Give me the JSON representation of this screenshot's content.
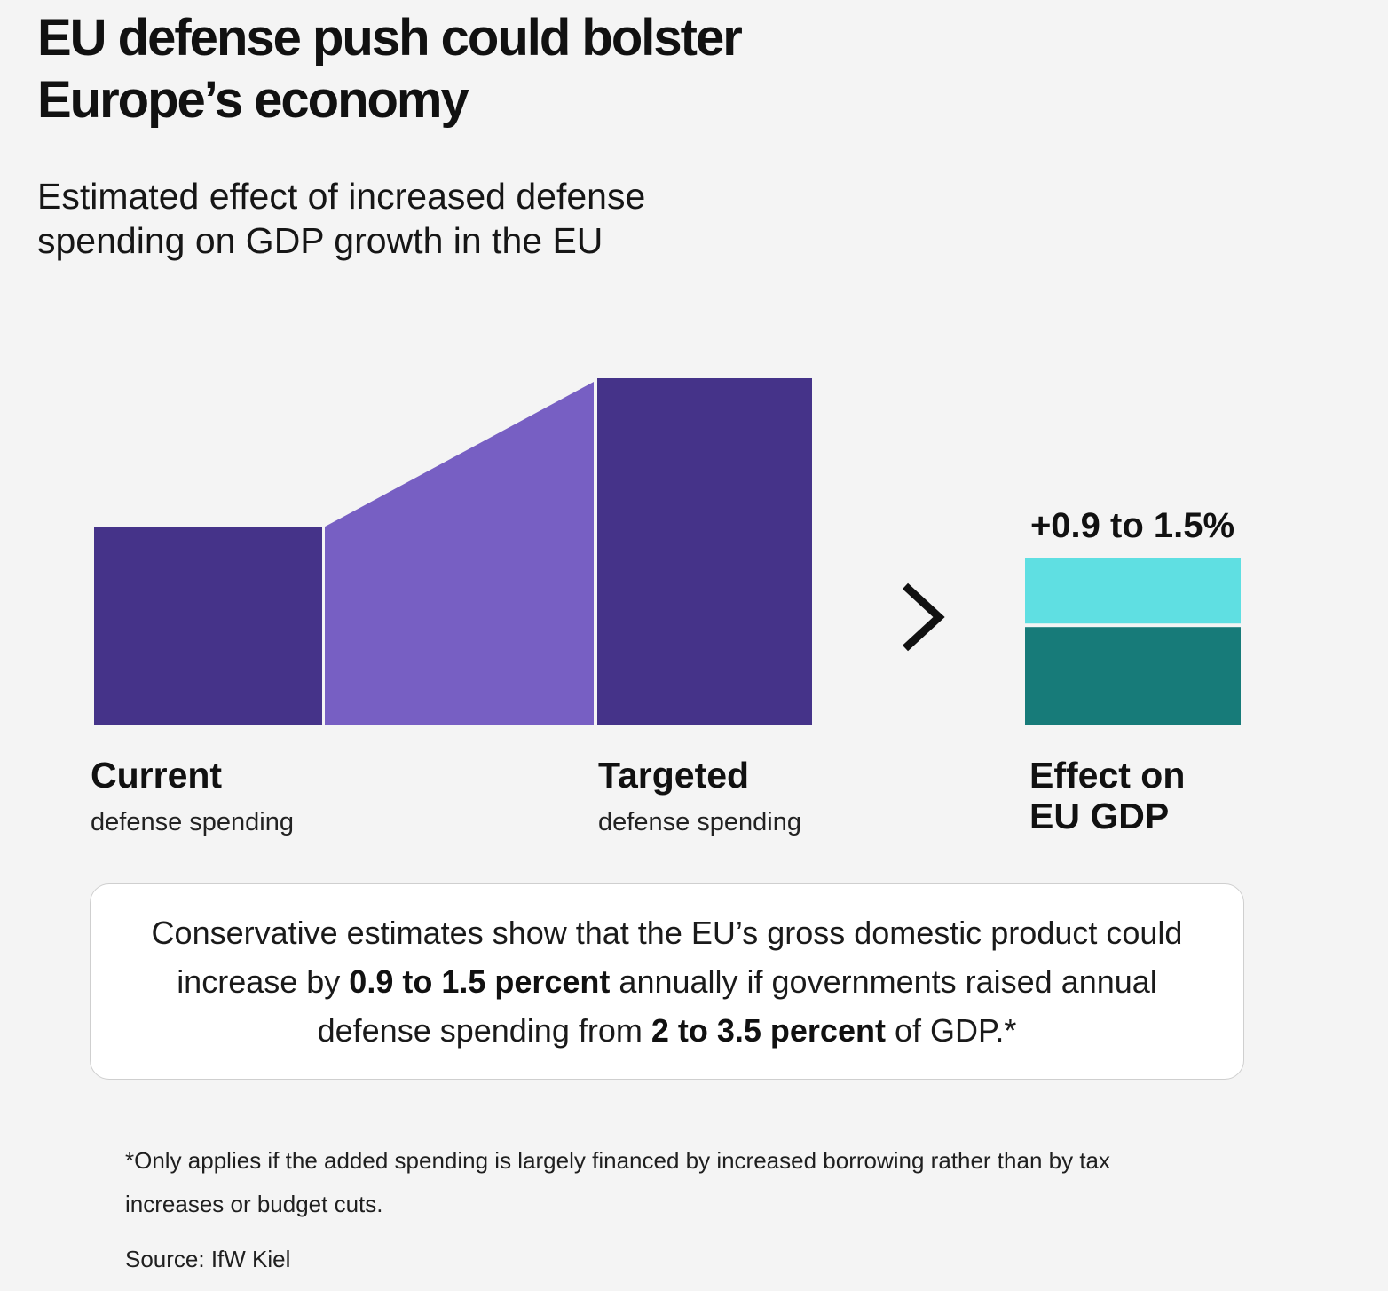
{
  "header": {
    "title_line1": "EU defense push could bolster",
    "title_line2": "Europe’s economy",
    "subtitle_line1": "Estimated effect of increased defense",
    "subtitle_line2": "spending on GDP growth in the EU"
  },
  "labels": {
    "current_head": "Current",
    "current_sub": "defense spending",
    "targeted_head": "Targeted",
    "targeted_sub": "defense spending",
    "gdp_line1": "Effect on",
    "gdp_line2": "EU GDP"
  },
  "note": {
    "part1": "Conservative estimates show that the EU’s gross domestic product could increase by ",
    "bold1": "0.9 to 1.5 percent",
    "part2": " annually if governments raised annual defense spending from ",
    "bold2": "2 to 3.5 percent",
    "part3": " of GDP.*"
  },
  "footnote": "*Only applies if the added spending is largely financed by increased borrowing rather than by tax increases or budget cuts.",
  "source": "Source: IfW Kiel",
  "colors": {
    "spending_dark": "#453389",
    "spending_increase": "#775fc3",
    "gdp_range_low": "#177b79",
    "gdp_range_high": "#5fdfe2",
    "chevron": "#111111"
  },
  "chart_data": {
    "type": "bar",
    "categories": [
      "Current",
      "Targeted"
    ],
    "values": [
      2,
      3.5
    ],
    "unit": "percent of GDP",
    "gdp_effect": {
      "label": "+0.9 to 1.5%",
      "low": 0.9,
      "high": 1.5
    }
  }
}
